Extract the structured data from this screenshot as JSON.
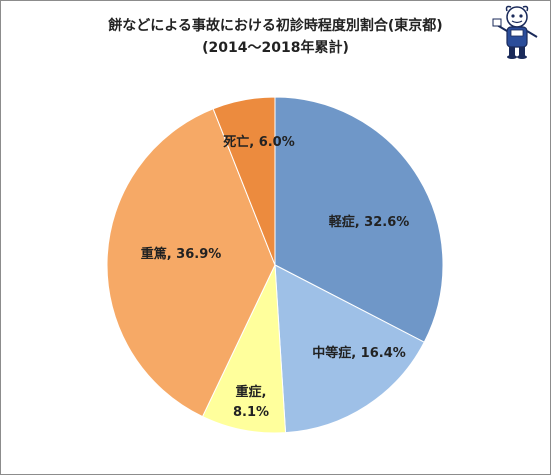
{
  "chart_data": {
    "type": "pie",
    "title": "餅などによる事故における初診時程度別割合(東京都)",
    "subtitle": "(2014〜2018年累計)",
    "unit": "%",
    "slices": [
      {
        "name": "軽症",
        "value": 32.6,
        "label_lines": [
          "軽症, 32.6%"
        ],
        "color": "#6f97c8"
      },
      {
        "name": "中等症",
        "value": 16.4,
        "label_lines": [
          "中等症, 16.4%"
        ],
        "color": "#9ec0e7"
      },
      {
        "name": "重症",
        "value": 8.1,
        "label_lines": [
          "重症,",
          "8.1%"
        ],
        "color": "#ffff9c"
      },
      {
        "name": "重篤",
        "value": 36.9,
        "label_lines": [
          "重篤, 36.9%"
        ],
        "color": "#f6a966"
      },
      {
        "name": "死亡",
        "value": 6.0,
        "label_lines": [
          "死亡, 6.0%"
        ],
        "color": "#ec8b3e"
      }
    ],
    "start_angle_deg": 0,
    "direction": "clockwise",
    "legend": "none"
  },
  "icons": {
    "mascot": "cartoon-mascot-icon"
  },
  "colors": {
    "slice_border": "#ffffff",
    "label_text": "#222222"
  }
}
